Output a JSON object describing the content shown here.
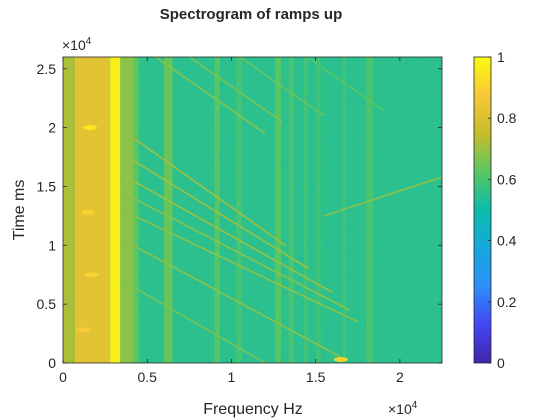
{
  "chart_data": {
    "type": "heatmap",
    "title": "Spectrogram of ramps up",
    "xlabel": "Frequency Hz",
    "ylabel": "Time ms",
    "x_multiplier_label": "×10",
    "x_multiplier_exp": "4",
    "y_multiplier_label": "×10",
    "y_multiplier_exp": "4",
    "xlim": [
      0,
      22500
    ],
    "ylim": [
      0,
      26000
    ],
    "x_ticks": [
      0,
      5000,
      10000,
      15000,
      20000
    ],
    "x_tick_labels": [
      "0",
      "0.5",
      "1",
      "1.5",
      "2"
    ],
    "y_ticks": [
      0,
      5000,
      10000,
      15000,
      20000,
      25000
    ],
    "y_tick_labels": [
      "0",
      "0.5",
      "1",
      "1.5",
      "2",
      "2.5"
    ],
    "colorbar": {
      "range": [
        0,
        1
      ],
      "ticks": [
        0,
        0.2,
        0.4,
        0.6,
        0.8,
        1
      ],
      "tick_labels": [
        "0",
        "0.2",
        "0.4",
        "0.6",
        "0.8",
        "1"
      ],
      "colormap": "parula"
    },
    "background_level": 0.55,
    "vertical_bands": [
      {
        "x_start": 0,
        "x_end": 700,
        "level": 0.72
      },
      {
        "x_start": 700,
        "x_end": 2800,
        "level": 0.82
      },
      {
        "x_start": 2800,
        "x_end": 3400,
        "level": 0.97
      },
      {
        "x_start": 3400,
        "x_end": 4200,
        "level": 0.68
      },
      {
        "x_start": 4200,
        "x_end": 4500,
        "level": 0.62
      },
      {
        "x_start": 6000,
        "x_end": 6500,
        "level": 0.64
      },
      {
        "x_start": 9000,
        "x_end": 9300,
        "level": 0.62
      },
      {
        "x_start": 10300,
        "x_end": 10600,
        "level": 0.6
      },
      {
        "x_start": 12600,
        "x_end": 12950,
        "level": 0.62
      },
      {
        "x_start": 13400,
        "x_end": 13700,
        "level": 0.6
      },
      {
        "x_start": 14300,
        "x_end": 14500,
        "level": 0.59
      },
      {
        "x_start": 15000,
        "x_end": 15300,
        "level": 0.58
      },
      {
        "x_start": 16600,
        "x_end": 16800,
        "level": 0.59
      },
      {
        "x_start": 18000,
        "x_end": 18400,
        "level": 0.6
      }
    ],
    "ramp_lines": [
      {
        "x1": 3500,
        "y1": 19800,
        "x2": 13200,
        "y2": 10000,
        "level": 0.7
      },
      {
        "x1": 3500,
        "y1": 17800,
        "x2": 14600,
        "y2": 8000,
        "level": 0.7
      },
      {
        "x1": 3500,
        "y1": 16000,
        "x2": 16000,
        "y2": 6000,
        "level": 0.7
      },
      {
        "x1": 3500,
        "y1": 14500,
        "x2": 17000,
        "y2": 4500,
        "level": 0.68
      },
      {
        "x1": 3500,
        "y1": 13000,
        "x2": 17500,
        "y2": 3500,
        "level": 0.68
      },
      {
        "x1": 3500,
        "y1": 10500,
        "x2": 16500,
        "y2": 500,
        "level": 0.68
      },
      {
        "x1": 3500,
        "y1": 7000,
        "x2": 12000,
        "y2": 0,
        "level": 0.66
      },
      {
        "x1": 5500,
        "y1": 26000,
        "x2": 12000,
        "y2": 19500,
        "level": 0.68
      },
      {
        "x1": 7500,
        "y1": 26000,
        "x2": 13000,
        "y2": 20500,
        "level": 0.66
      },
      {
        "x1": 10500,
        "y1": 26000,
        "x2": 15500,
        "y2": 21000,
        "level": 0.64
      },
      {
        "x1": 14500,
        "y1": 26000,
        "x2": 19000,
        "y2": 21500,
        "level": 0.62
      },
      {
        "x1": 15500,
        "y1": 12500,
        "x2": 22500,
        "y2": 15800,
        "level": 0.68
      }
    ],
    "bright_spots": [
      {
        "x": 1600,
        "y": 20000,
        "level": 0.95
      },
      {
        "x": 1500,
        "y": 12800,
        "level": 0.9
      },
      {
        "x": 1700,
        "y": 7500,
        "level": 0.9
      },
      {
        "x": 1200,
        "y": 2800,
        "level": 0.88
      },
      {
        "x": 16500,
        "y": 300,
        "level": 0.9
      }
    ]
  }
}
